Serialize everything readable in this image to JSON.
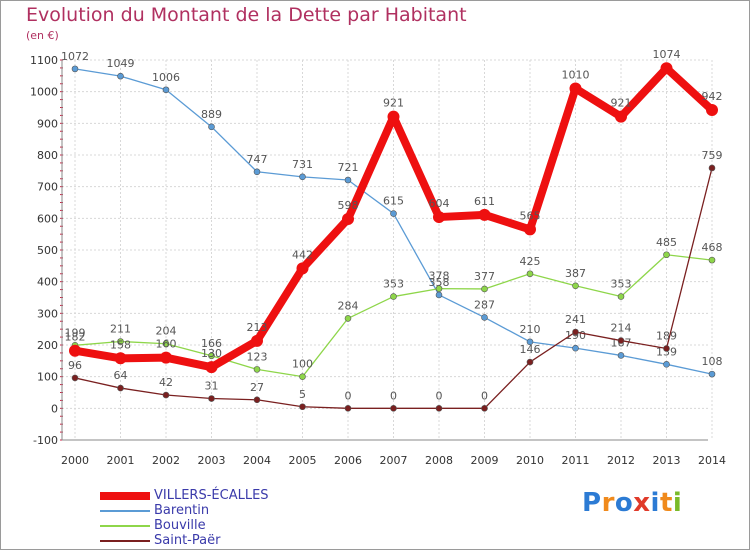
{
  "header": {
    "title": "Evolution du Montant de la Dette par Habitant",
    "subtitle": "(en €)"
  },
  "brand": {
    "letters": [
      "P",
      "r",
      "o",
      "x",
      "i",
      "t",
      "i"
    ],
    "colors": [
      "#2c7bd4",
      "#f08a1c",
      "#2c7bd4",
      "#e03a2a",
      "#2c7bd4",
      "#f08a1c",
      "#7aba28"
    ]
  },
  "chart_data": {
    "type": "line",
    "title": "Evolution du Montant de la Dette par Habitant",
    "subtitle": "(en €)",
    "xlabel": "",
    "ylabel": "",
    "x": [
      2000,
      2001,
      2002,
      2003,
      2004,
      2005,
      2006,
      2007,
      2008,
      2009,
      2010,
      2011,
      2012,
      2013,
      2014
    ],
    "ylim": [
      -100,
      1100
    ],
    "yticks": [
      -100,
      0,
      100,
      200,
      300,
      400,
      500,
      600,
      700,
      800,
      900,
      1000,
      1100
    ],
    "grid": true,
    "legend_position": "bottom-left",
    "series": [
      {
        "name": "VILLERS-ÉCALLES",
        "color": "#ee1010",
        "values": [
          182,
          158,
          160,
          130,
          213,
          442,
          598,
          921,
          604,
          611,
          565,
          1010,
          921,
          1074,
          942
        ]
      },
      {
        "name": "Barentin",
        "color": "#5b9bd5",
        "values": [
          1072,
          1049,
          1006,
          889,
          747,
          731,
          721,
          615,
          358,
          287,
          210,
          190,
          167,
          139,
          108
        ]
      },
      {
        "name": "Bouville",
        "color": "#8ed64a",
        "values": [
          199,
          211,
          204,
          166,
          123,
          100,
          284,
          353,
          378,
          377,
          425,
          387,
          353,
          485,
          468
        ]
      },
      {
        "name": "Saint-Paër",
        "color": "#7a2020",
        "values": [
          96,
          64,
          42,
          31,
          27,
          5,
          0,
          0,
          0,
          0,
          146,
          241,
          214,
          189,
          759
        ]
      }
    ]
  }
}
